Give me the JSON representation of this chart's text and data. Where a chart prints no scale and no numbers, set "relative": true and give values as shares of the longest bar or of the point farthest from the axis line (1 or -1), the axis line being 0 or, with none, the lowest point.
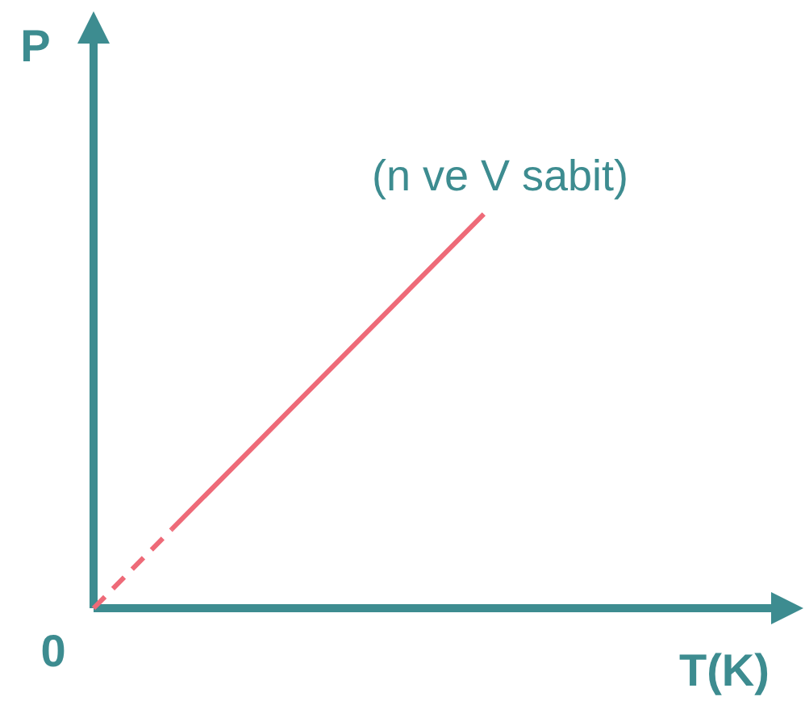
{
  "chart_data": {
    "type": "line",
    "relative": true,
    "xlabel": "T(K)",
    "ylabel": "P",
    "annotations": [
      "0",
      "(n ve V sabit)"
    ],
    "categories": [
      null,
      null,
      null,
      null,
      null,
      null
    ],
    "series": [
      {
        "values": [
          0,
          0.2,
          null,
          null,
          null,
          null
        ],
        "color": "#ee6a78",
        "line_style": "dashed"
      },
      {
        "values": [
          null,
          0.2,
          0.4,
          0.6,
          0.8,
          1
        ],
        "color": "#ee6a78",
        "line_style": "solid"
      }
    ]
  }
}
